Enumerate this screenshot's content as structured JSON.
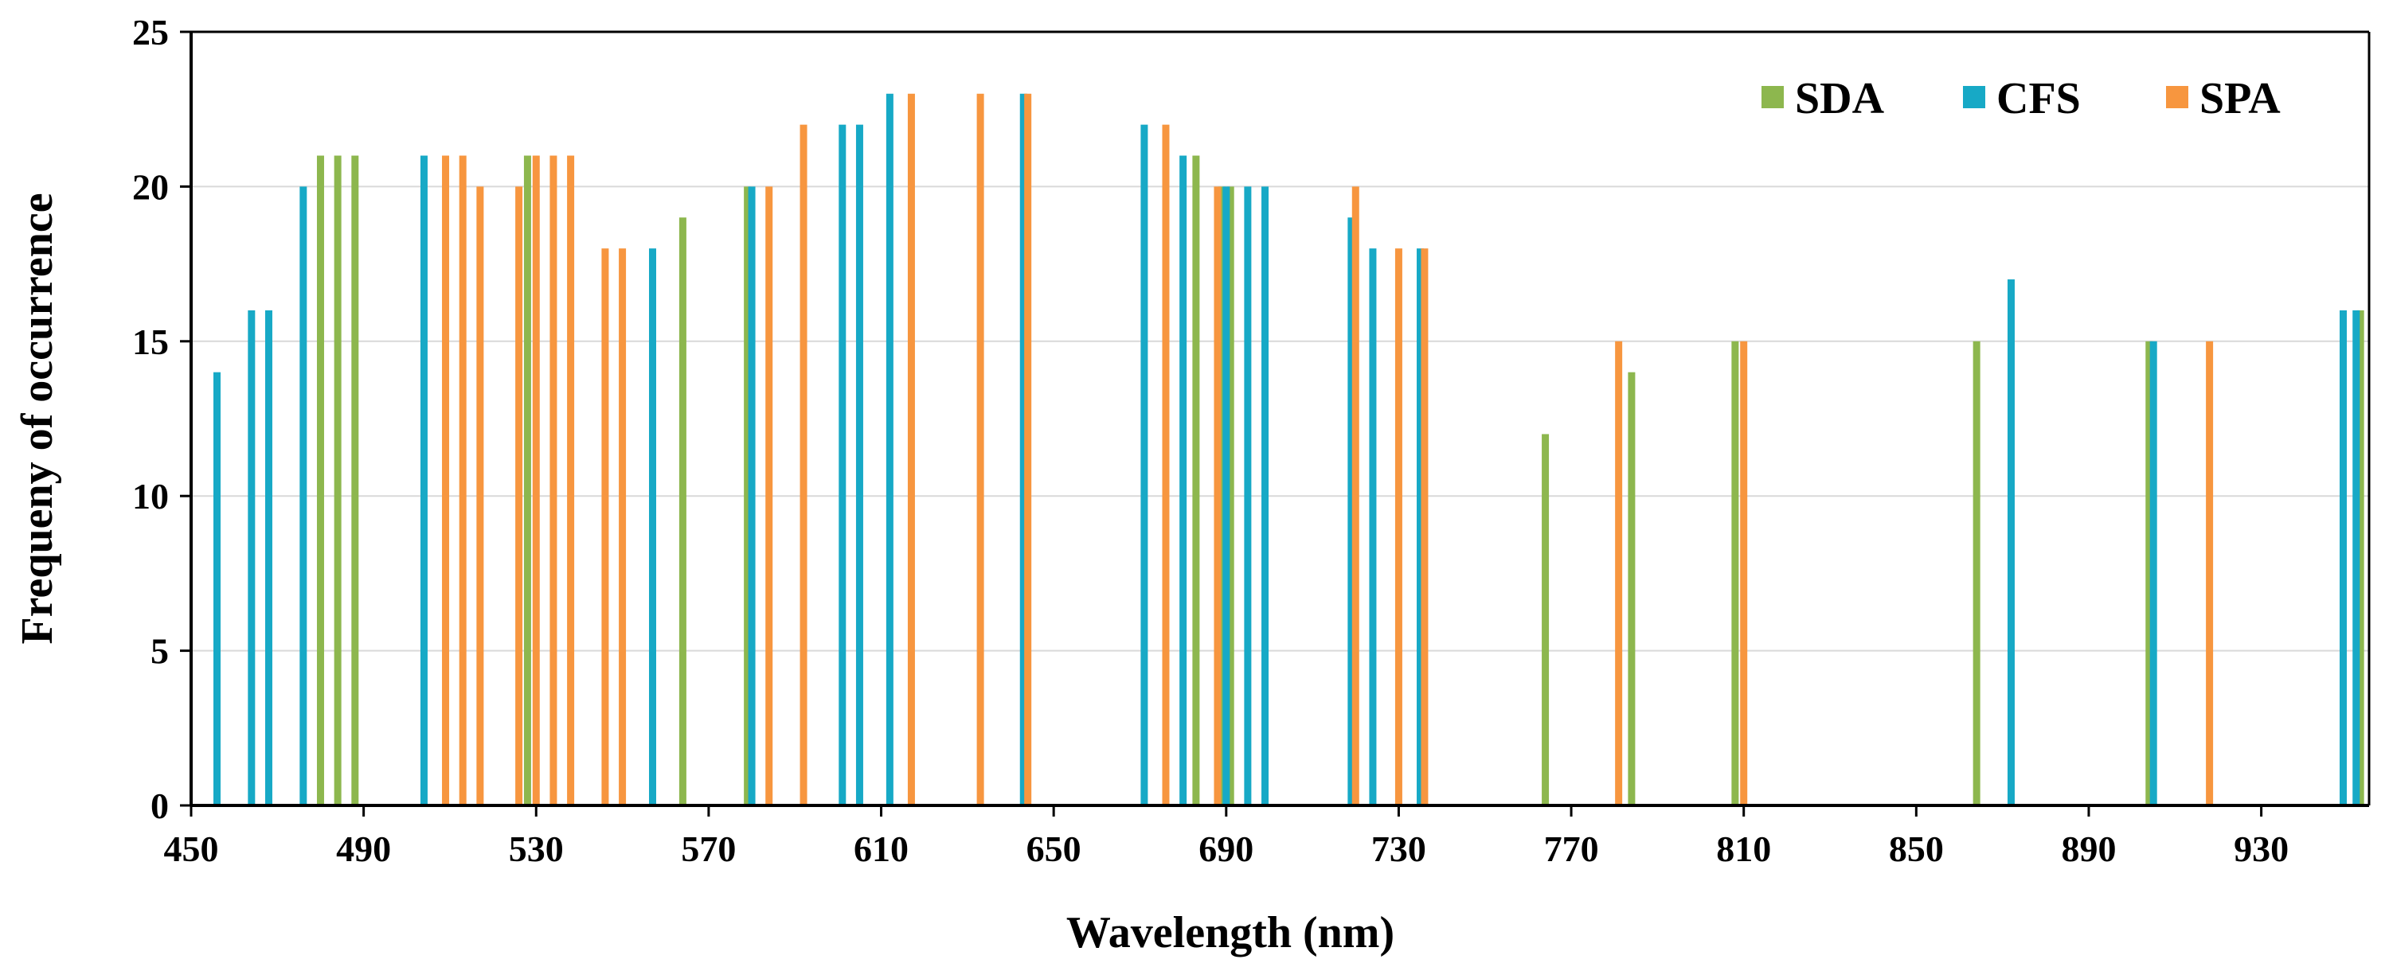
{
  "chart_data": {
    "type": "bar",
    "title": "",
    "xlabel": "Wavelength (nm)",
    "ylabel": "Frequeny of occurrence",
    "xlim": [
      450,
      955
    ],
    "ylim": [
      0,
      25
    ],
    "x_ticks": [
      450,
      490,
      530,
      570,
      610,
      650,
      690,
      730,
      770,
      810,
      850,
      890,
      930
    ],
    "y_ticks": [
      0,
      5,
      10,
      15,
      20,
      25
    ],
    "grid": "horizontal",
    "legend_position": "top-right",
    "series": [
      {
        "name": "SDA",
        "color": "#8DB74E",
        "points": [
          {
            "x": 480,
            "y": 21
          },
          {
            "x": 484,
            "y": 21
          },
          {
            "x": 488,
            "y": 21
          },
          {
            "x": 528,
            "y": 21
          },
          {
            "x": 564,
            "y": 19
          },
          {
            "x": 579,
            "y": 20
          },
          {
            "x": 683,
            "y": 21
          },
          {
            "x": 689,
            "y": 20
          },
          {
            "x": 691,
            "y": 20
          },
          {
            "x": 764,
            "y": 12
          },
          {
            "x": 784,
            "y": 14
          },
          {
            "x": 808,
            "y": 15
          },
          {
            "x": 864,
            "y": 15
          },
          {
            "x": 904,
            "y": 15
          },
          {
            "x": 953,
            "y": 16
          }
        ]
      },
      {
        "name": "CFS",
        "color": "#17A9C6",
        "points": [
          {
            "x": 456,
            "y": 14
          },
          {
            "x": 464,
            "y": 16
          },
          {
            "x": 468,
            "y": 16
          },
          {
            "x": 476,
            "y": 20
          },
          {
            "x": 504,
            "y": 21
          },
          {
            "x": 557,
            "y": 18
          },
          {
            "x": 580,
            "y": 20
          },
          {
            "x": 601,
            "y": 22
          },
          {
            "x": 605,
            "y": 22
          },
          {
            "x": 612,
            "y": 23
          },
          {
            "x": 643,
            "y": 23
          },
          {
            "x": 671,
            "y": 22
          },
          {
            "x": 680,
            "y": 21
          },
          {
            "x": 690,
            "y": 20
          },
          {
            "x": 695,
            "y": 20
          },
          {
            "x": 699,
            "y": 20
          },
          {
            "x": 719,
            "y": 19
          },
          {
            "x": 724,
            "y": 18
          },
          {
            "x": 735,
            "y": 18
          },
          {
            "x": 872,
            "y": 17
          },
          {
            "x": 905,
            "y": 15
          },
          {
            "x": 949,
            "y": 16
          },
          {
            "x": 952,
            "y": 16
          }
        ]
      },
      {
        "name": "SPA",
        "color": "#F7963F",
        "points": [
          {
            "x": 509,
            "y": 21
          },
          {
            "x": 513,
            "y": 21
          },
          {
            "x": 517,
            "y": 20
          },
          {
            "x": 526,
            "y": 20
          },
          {
            "x": 530,
            "y": 21
          },
          {
            "x": 534,
            "y": 21
          },
          {
            "x": 538,
            "y": 21
          },
          {
            "x": 546,
            "y": 18
          },
          {
            "x": 550,
            "y": 18
          },
          {
            "x": 584,
            "y": 20
          },
          {
            "x": 592,
            "y": 22
          },
          {
            "x": 617,
            "y": 23
          },
          {
            "x": 633,
            "y": 23
          },
          {
            "x": 644,
            "y": 23
          },
          {
            "x": 676,
            "y": 22
          },
          {
            "x": 688,
            "y": 20
          },
          {
            "x": 720,
            "y": 20
          },
          {
            "x": 730,
            "y": 18
          },
          {
            "x": 736,
            "y": 18
          },
          {
            "x": 781,
            "y": 15
          },
          {
            "x": 810,
            "y": 15
          },
          {
            "x": 918,
            "y": 15
          }
        ]
      }
    ]
  }
}
